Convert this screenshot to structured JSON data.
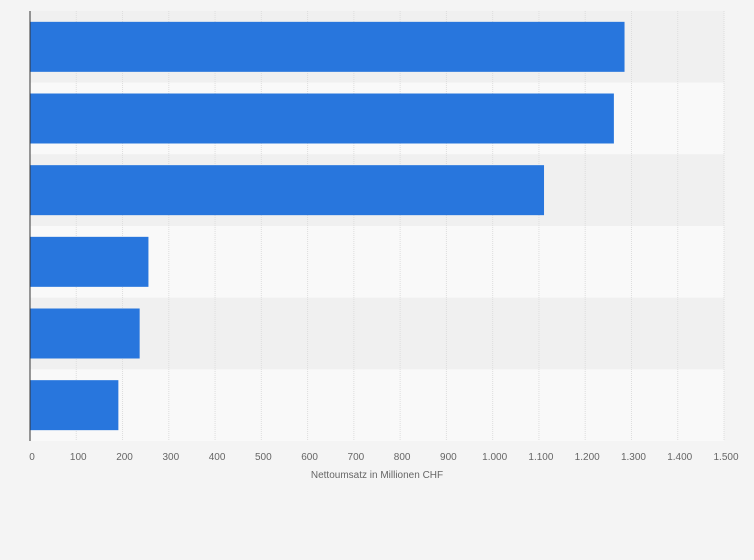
{
  "chart_data": {
    "type": "bar",
    "orientation": "horizontal",
    "categories": [
      "",
      "",
      "",
      "",
      "",
      ""
    ],
    "values": [
      1285,
      1262,
      1111,
      256,
      237,
      191
    ],
    "xlabel": "Nettoumsatz in Millionen CHF",
    "ylabel": "",
    "xlim": [
      0,
      1500
    ],
    "ticks": [
      0,
      100,
      200,
      300,
      400,
      500,
      600,
      700,
      800,
      900,
      1000,
      1100,
      1200,
      1300,
      1400,
      1500
    ],
    "tick_labels": [
      "0",
      "100",
      "200",
      "300",
      "400",
      "500",
      "600",
      "700",
      "800",
      "900",
      "1.000",
      "1.100",
      "1.200",
      "1.300",
      "1.400",
      "1.500"
    ],
    "grid": true,
    "legend": "none",
    "colors": {
      "bar": "#2876dd",
      "band_dark": "#f0f0f0",
      "band_light": "#f9f9f9",
      "grid": "#dddddd",
      "axis": "#333333"
    }
  }
}
